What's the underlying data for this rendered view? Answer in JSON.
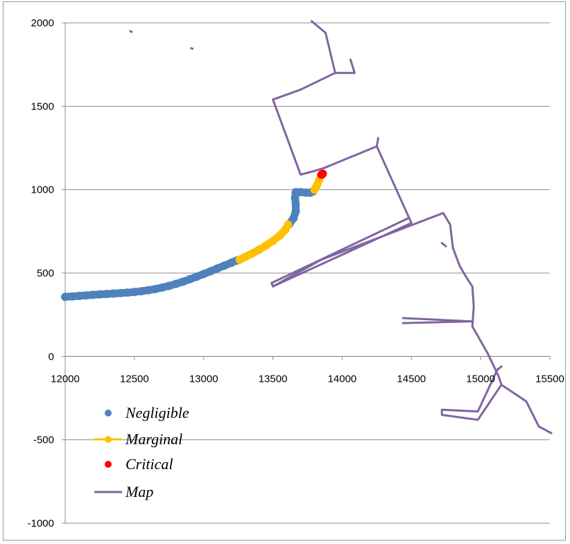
{
  "chart_data": {
    "type": "scatter",
    "title": "",
    "xlabel": "",
    "ylabel": "",
    "xlim": [
      12000,
      15500
    ],
    "ylim": [
      -1000,
      2000
    ],
    "x_ticks": [
      12000,
      12500,
      13000,
      13500,
      14000,
      14500,
      15000,
      15500
    ],
    "y_ticks": [
      -1000,
      -500,
      0,
      500,
      1000,
      1500,
      2000
    ],
    "x_tick_labels": [
      "12000",
      "12500",
      "13000",
      "13500",
      "14000",
      "14500",
      "15000",
      "15500"
    ],
    "y_tick_labels": [
      "-1000",
      "-500",
      "0",
      "500",
      "1000",
      "1500",
      "2000"
    ],
    "grid": "horizontal",
    "legend_position": "bottom-left",
    "series": [
      {
        "name": "Negligible",
        "kind": "points",
        "color": "#4f81bd",
        "points": [
          [
            12000,
            357
          ],
          [
            12050,
            360
          ],
          [
            12100,
            363
          ],
          [
            12150,
            366
          ],
          [
            12200,
            369
          ],
          [
            12250,
            372
          ],
          [
            12300,
            375
          ],
          [
            12350,
            377
          ],
          [
            12400,
            380
          ],
          [
            12450,
            383
          ],
          [
            12500,
            386
          ],
          [
            12550,
            391
          ],
          [
            12600,
            397
          ],
          [
            12650,
            404
          ],
          [
            12700,
            413
          ],
          [
            12750,
            423
          ],
          [
            12800,
            435
          ],
          [
            12850,
            448
          ],
          [
            12900,
            463
          ],
          [
            12950,
            478
          ],
          [
            13000,
            494
          ],
          [
            13050,
            511
          ],
          [
            13100,
            528
          ],
          [
            13150,
            545
          ],
          [
            13200,
            562
          ],
          [
            13240,
            575
          ],
          [
            13620,
            795
          ],
          [
            13650,
            830
          ],
          [
            13665,
            870
          ],
          [
            13665,
            910
          ],
          [
            13660,
            950
          ],
          [
            13665,
            985
          ],
          [
            13700,
            985
          ],
          [
            13740,
            982
          ],
          [
            13770,
            982
          ],
          [
            13790,
            990
          ]
        ]
      },
      {
        "name": "Marginal",
        "kind": "points",
        "color": "#ffc000",
        "points": [
          [
            13260,
            580
          ],
          [
            13300,
            597
          ],
          [
            13350,
            617
          ],
          [
            13400,
            640
          ],
          [
            13450,
            665
          ],
          [
            13500,
            693
          ],
          [
            13550,
            725
          ],
          [
            13590,
            760
          ],
          [
            13610,
            790
          ],
          [
            13800,
            1000
          ],
          [
            13820,
            1030
          ],
          [
            13835,
            1060
          ],
          [
            13845,
            1080
          ]
        ]
      },
      {
        "name": "Critical",
        "kind": "points",
        "color": "#ff0000",
        "points": [
          [
            13850,
            1090
          ],
          [
            13860,
            1095
          ]
        ]
      },
      {
        "name": "Map",
        "kind": "lines",
        "color": "#8064a2",
        "lines": [
          [
            [
              13780,
              2010
            ],
            [
              13880,
              1940
            ],
            [
              13950,
              1700
            ],
            [
              14090,
              1700
            ],
            [
              14060,
              1780
            ]
          ],
          [
            [
              13950,
              1700
            ],
            [
              13700,
              1600
            ],
            [
              13500,
              1540
            ],
            [
              13700,
              1090
            ],
            [
              13790,
              1110
            ],
            [
              13870,
              1130
            ],
            [
              13900,
              1140
            ]
          ],
          [
            [
              13870,
              1130
            ],
            [
              14250,
              1260
            ],
            [
              14260,
              1310
            ]
          ],
          [
            [
              14250,
              1260
            ],
            [
              14500,
              800
            ],
            [
              13500,
              420
            ],
            [
              13490,
              440
            ],
            [
              14480,
              830
            ]
          ],
          [
            [
              13500,
              420
            ],
            [
              13850,
              580
            ],
            [
              14730,
              860
            ],
            [
              14780,
              790
            ],
            [
              14800,
              650
            ],
            [
              14850,
              540
            ],
            [
              14900,
              470
            ],
            [
              14940,
              420
            ],
            [
              14950,
              300
            ],
            [
              14940,
              180
            ],
            [
              15050,
              20
            ],
            [
              15130,
              -120
            ],
            [
              15150,
              -170
            ],
            [
              15330,
              -270
            ],
            [
              15420,
              -420
            ],
            [
              15510,
              -460
            ]
          ],
          [
            [
              14440,
              230
            ],
            [
              14940,
              210
            ],
            [
              14440,
              200
            ]
          ],
          [
            [
              14750,
              660
            ],
            [
              14720,
              680
            ]
          ],
          [
            [
              15150,
              -170
            ],
            [
              14980,
              -380
            ],
            [
              14720,
              -350
            ],
            [
              14720,
              -320
            ],
            [
              14980,
              -330
            ],
            [
              15120,
              -80
            ],
            [
              15150,
              -60
            ]
          ],
          [
            [
              12470,
              1950
            ],
            [
              12480,
              1946
            ]
          ],
          [
            [
              12910,
              1848
            ],
            [
              12920,
              1845
            ]
          ]
        ]
      }
    ]
  }
}
